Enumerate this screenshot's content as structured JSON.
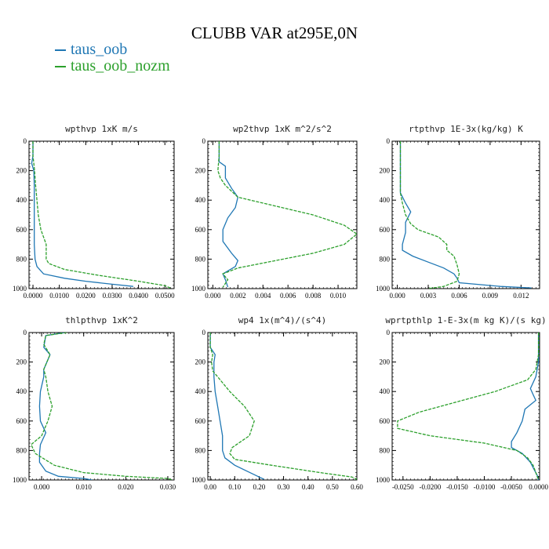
{
  "title": "CLUBB VAR at295E,0N",
  "legend": [
    {
      "name": "taus_oob",
      "color": "#1f77b4"
    },
    {
      "name": "taus_oob_nozm",
      "color": "#2ca02c"
    }
  ],
  "chart_data": [
    {
      "type": "line",
      "title": "wpthvp   1xK m/s",
      "xlim": [
        -0.0015,
        0.0535
      ],
      "ylim": [
        1000,
        0
      ],
      "xticks": [
        "0.0000",
        "0.0100",
        "0.0200",
        "0.0300",
        "0.0400",
        "0.0500"
      ],
      "xtick_values": [
        0,
        0.01,
        0.02,
        0.03,
        0.04,
        0.05
      ],
      "yticks": [
        "0",
        "200",
        "400",
        "600",
        "800",
        "1000"
      ],
      "ytick_values": [
        0,
        200,
        400,
        600,
        800,
        1000
      ],
      "grid": false,
      "series": [
        {
          "name": "taus_oob",
          "color": "#1f77b4",
          "points": [
            [
              0,
              0
            ],
            [
              0,
              100
            ],
            [
              -0.0005,
              150
            ],
            [
              0.0003,
              200
            ],
            [
              0.0005,
              300
            ],
            [
              0.0005,
              400
            ],
            [
              0.0005,
              500
            ],
            [
              0.0005,
              600
            ],
            [
              0.0005,
              700
            ],
            [
              0.0008,
              800
            ],
            [
              0.0015,
              850
            ],
            [
              0.004,
              900
            ],
            [
              0.012,
              930
            ],
            [
              0.02,
              950
            ],
            [
              0.03,
              970
            ],
            [
              0.038,
              985
            ]
          ]
        },
        {
          "name": "taus_oob_nozm",
          "color": "#2ca02c",
          "points": [
            [
              0,
              0
            ],
            [
              0,
              100
            ],
            [
              0.0003,
              150
            ],
            [
              0.0006,
              200
            ],
            [
              0.001,
              300
            ],
            [
              0.0015,
              400
            ],
            [
              0.002,
              500
            ],
            [
              0.003,
              600
            ],
            [
              0.005,
              700
            ],
            [
              0.005,
              750
            ],
            [
              0.005,
              800
            ],
            [
              0.006,
              830
            ],
            [
              0.012,
              870
            ],
            [
              0.025,
              910
            ],
            [
              0.04,
              950
            ],
            [
              0.05,
              980
            ],
            [
              0.052,
              995
            ]
          ]
        }
      ]
    },
    {
      "type": "line",
      "title": "wp2thvp   1xK m^2/s^2",
      "xlim": [
        -0.0004,
        0.0115
      ],
      "ylim": [
        1000,
        0
      ],
      "xticks": [
        "0.000",
        "0.002",
        "0.004",
        "0.006",
        "0.008",
        "0.010"
      ],
      "xtick_values": [
        0,
        0.002,
        0.004,
        0.006,
        0.008,
        0.01
      ],
      "yticks": [
        "0",
        "200",
        "400",
        "600",
        "800",
        "1000"
      ],
      "ytick_values": [
        0,
        200,
        400,
        600,
        800,
        1000
      ],
      "grid": false,
      "series": [
        {
          "name": "taus_oob",
          "color": "#1f77b4",
          "points": [
            [
              0.0005,
              0
            ],
            [
              0.0005,
              100
            ],
            [
              0.0005,
              140
            ],
            [
              0.001,
              170
            ],
            [
              0.001,
              250
            ],
            [
              0.0015,
              320
            ],
            [
              0.002,
              380
            ],
            [
              0.0018,
              450
            ],
            [
              0.0012,
              520
            ],
            [
              0.0008,
              600
            ],
            [
              0.0008,
              680
            ],
            [
              0.0015,
              760
            ],
            [
              0.002,
              810
            ],
            [
              0.0018,
              850
            ],
            [
              0.0012,
              880
            ],
            [
              0.0008,
              900
            ],
            [
              0.001,
              940
            ],
            [
              0.0012,
              990
            ]
          ]
        },
        {
          "name": "taus_oob_nozm",
          "color": "#2ca02c",
          "points": [
            [
              0.0005,
              0
            ],
            [
              0.0005,
              100
            ],
            [
              0.0004,
              200
            ],
            [
              0.0006,
              250
            ],
            [
              0.001,
              300
            ],
            [
              0.002,
              380
            ],
            [
              0.005,
              440
            ],
            [
              0.008,
              500
            ],
            [
              0.0105,
              570
            ],
            [
              0.0115,
              630
            ],
            [
              0.0105,
              700
            ],
            [
              0.008,
              760
            ],
            [
              0.005,
              810
            ],
            [
              0.002,
              860
            ],
            [
              0.0008,
              900
            ],
            [
              0.0012,
              940
            ],
            [
              0.0008,
              990
            ]
          ]
        }
      ]
    },
    {
      "type": "line",
      "title": "rtpthvp   1E-3x(kg/kg) K",
      "xlim": [
        -0.0005,
        0.0138
      ],
      "ylim": [
        1000,
        0
      ],
      "xticks": [
        "0.000",
        "0.003",
        "0.006",
        "0.009",
        "0.012"
      ],
      "xtick_values": [
        0,
        0.003,
        0.006,
        0.009,
        0.012
      ],
      "yticks": [
        "0",
        "200",
        "400",
        "600",
        "800",
        "1000"
      ],
      "ytick_values": [
        0,
        200,
        400,
        600,
        800,
        1000
      ],
      "grid": false,
      "series": [
        {
          "name": "taus_oob",
          "color": "#1f77b4",
          "points": [
            [
              0.0003,
              0
            ],
            [
              0.0003,
              200
            ],
            [
              0.0003,
              350
            ],
            [
              0.0008,
              420
            ],
            [
              0.0013,
              480
            ],
            [
              0.0008,
              550
            ],
            [
              0.0008,
              620
            ],
            [
              0.0005,
              700
            ],
            [
              0.0005,
              740
            ],
            [
              0.0015,
              780
            ],
            [
              0.003,
              820
            ],
            [
              0.0045,
              860
            ],
            [
              0.0055,
              900
            ],
            [
              0.0058,
              930
            ],
            [
              0.006,
              960
            ],
            [
              0.01,
              985
            ],
            [
              0.013,
              995
            ]
          ]
        },
        {
          "name": "taus_oob_nozm",
          "color": "#2ca02c",
          "points": [
            [
              0.0003,
              0
            ],
            [
              0.0003,
              200
            ],
            [
              0.0003,
              350
            ],
            [
              0.0005,
              420
            ],
            [
              0.0008,
              500
            ],
            [
              0.0013,
              560
            ],
            [
              0.002,
              600
            ],
            [
              0.004,
              650
            ],
            [
              0.0048,
              700
            ],
            [
              0.0048,
              740
            ],
            [
              0.0055,
              780
            ],
            [
              0.0058,
              840
            ],
            [
              0.006,
              900
            ],
            [
              0.0058,
              950
            ],
            [
              0.0045,
              985
            ],
            [
              0.003,
              1000
            ]
          ]
        }
      ]
    },
    {
      "type": "line",
      "title": "thlpthvp   1xK^2",
      "xlim": [
        -0.003,
        0.0315
      ],
      "ylim": [
        1000,
        0
      ],
      "xticks": [
        "0.000",
        "0.010",
        "0.020",
        "0.030"
      ],
      "xtick_values": [
        0,
        0.01,
        0.02,
        0.03
      ],
      "yticks": [
        "0",
        "200",
        "400",
        "600",
        "800",
        "1000"
      ],
      "ytick_values": [
        0,
        200,
        400,
        600,
        800,
        1000
      ],
      "grid": false,
      "series": [
        {
          "name": "taus_oob",
          "color": "#1f77b4",
          "points": [
            [
              0.0055,
              0
            ],
            [
              0.001,
              20
            ],
            [
              0.0005,
              100
            ],
            [
              0.002,
              150
            ],
            [
              0.0005,
              250
            ],
            [
              0.0005,
              300
            ],
            [
              -0.0003,
              400
            ],
            [
              -0.0005,
              500
            ],
            [
              -0.0003,
              600
            ],
            [
              0.001,
              680
            ],
            [
              -0.0003,
              760
            ],
            [
              -0.0005,
              820
            ],
            [
              -0.0005,
              880
            ],
            [
              0.001,
              940
            ],
            [
              0.004,
              975
            ],
            [
              0.01,
              990
            ],
            [
              0.012,
              1000
            ]
          ]
        },
        {
          "name": "taus_oob_nozm",
          "color": "#2ca02c",
          "points": [
            [
              0.006,
              0
            ],
            [
              0.001,
              20
            ],
            [
              0.0005,
              80
            ],
            [
              0.002,
              150
            ],
            [
              0.0005,
              250
            ],
            [
              0.001,
              300
            ],
            [
              0.0015,
              400
            ],
            [
              0.0025,
              500
            ],
            [
              0.0015,
              600
            ],
            [
              0,
              700
            ],
            [
              -0.0025,
              760
            ],
            [
              -0.0015,
              820
            ],
            [
              0.003,
              900
            ],
            [
              0.01,
              950
            ],
            [
              0.02,
              975
            ],
            [
              0.03,
              990
            ],
            [
              0.031,
              1000
            ]
          ]
        }
      ]
    },
    {
      "type": "line",
      "title": "wp4   1x(m^4)/(s^4)",
      "xlim": [
        -0.01,
        0.6
      ],
      "ylim": [
        1000,
        0
      ],
      "xticks": [
        "0.00",
        "0.10",
        "0.20",
        "0.30",
        "0.40",
        "0.50",
        "0.60"
      ],
      "xtick_values": [
        0,
        0.1,
        0.2,
        0.3,
        0.4,
        0.5,
        0.6
      ],
      "yticks": [
        "0",
        "200",
        "400",
        "600",
        "800",
        "1000"
      ],
      "ytick_values": [
        0,
        200,
        400,
        600,
        800,
        1000
      ],
      "grid": false,
      "series": [
        {
          "name": "taus_oob",
          "color": "#1f77b4",
          "points": [
            [
              0,
              0
            ],
            [
              0,
              100
            ],
            [
              0.02,
              150
            ],
            [
              0.015,
              200
            ],
            [
              0.015,
              300
            ],
            [
              0.02,
              400
            ],
            [
              0.03,
              500
            ],
            [
              0.04,
              600
            ],
            [
              0.05,
              700
            ],
            [
              0.05,
              800
            ],
            [
              0.06,
              850
            ],
            [
              0.1,
              900
            ],
            [
              0.15,
              940
            ],
            [
              0.2,
              980
            ],
            [
              0.22,
              995
            ]
          ]
        },
        {
          "name": "taus_oob_nozm",
          "color": "#2ca02c",
          "points": [
            [
              0,
              0
            ],
            [
              0,
              100
            ],
            [
              0.01,
              150
            ],
            [
              0.005,
              200
            ],
            [
              0.01,
              260
            ],
            [
              0.03,
              300
            ],
            [
              0.08,
              400
            ],
            [
              0.14,
              500
            ],
            [
              0.18,
              600
            ],
            [
              0.16,
              700
            ],
            [
              0.09,
              780
            ],
            [
              0.08,
              820
            ],
            [
              0.1,
              860
            ],
            [
              0.25,
              900
            ],
            [
              0.45,
              950
            ],
            [
              0.58,
              980
            ],
            [
              0.6,
              995
            ]
          ]
        }
      ]
    },
    {
      "type": "line",
      "title": "wprtpthlp   1-E-3x(m kg K)/(s kg)",
      "xlim": [
        -0.027,
        0.0002
      ],
      "ylim": [
        1000,
        0
      ],
      "xticks": [
        "-0.0250",
        "-0.0200",
        "-0.0150",
        "-0.0100",
        "-0.0050",
        "0.0000"
      ],
      "xtick_values": [
        -0.025,
        -0.02,
        -0.015,
        -0.01,
        -0.005,
        0
      ],
      "yticks": [
        "0",
        "200",
        "400",
        "600",
        "800",
        "1000"
      ],
      "ytick_values": [
        0,
        200,
        400,
        600,
        800,
        1000
      ],
      "grid": false,
      "series": [
        {
          "name": "taus_oob",
          "color": "#1f77b4",
          "points": [
            [
              0,
              0
            ],
            [
              0,
              200
            ],
            [
              -0.0005,
              300
            ],
            [
              -0.0015,
              380
            ],
            [
              -0.001,
              420
            ],
            [
              -0.0005,
              460
            ],
            [
              -0.0025,
              520
            ],
            [
              -0.003,
              600
            ],
            [
              -0.004,
              680
            ],
            [
              -0.005,
              740
            ],
            [
              -0.005,
              780
            ],
            [
              -0.003,
              820
            ],
            [
              -0.0015,
              880
            ],
            [
              -0.0008,
              930
            ],
            [
              -0.0002,
              970
            ],
            [
              0,
              1000
            ]
          ]
        },
        {
          "name": "taus_oob_nozm",
          "color": "#2ca02c",
          "points": [
            [
              0,
              0
            ],
            [
              0,
              150
            ],
            [
              -0.0005,
              250
            ],
            [
              -0.002,
              320
            ],
            [
              -0.008,
              400
            ],
            [
              -0.016,
              480
            ],
            [
              -0.022,
              540
            ],
            [
              -0.026,
              600
            ],
            [
              -0.026,
              650
            ],
            [
              -0.02,
              700
            ],
            [
              -0.01,
              750
            ],
            [
              -0.004,
              800
            ],
            [
              -0.002,
              850
            ],
            [
              -0.001,
              900
            ],
            [
              -0.0005,
              950
            ],
            [
              0,
              1000
            ]
          ]
        }
      ]
    }
  ]
}
